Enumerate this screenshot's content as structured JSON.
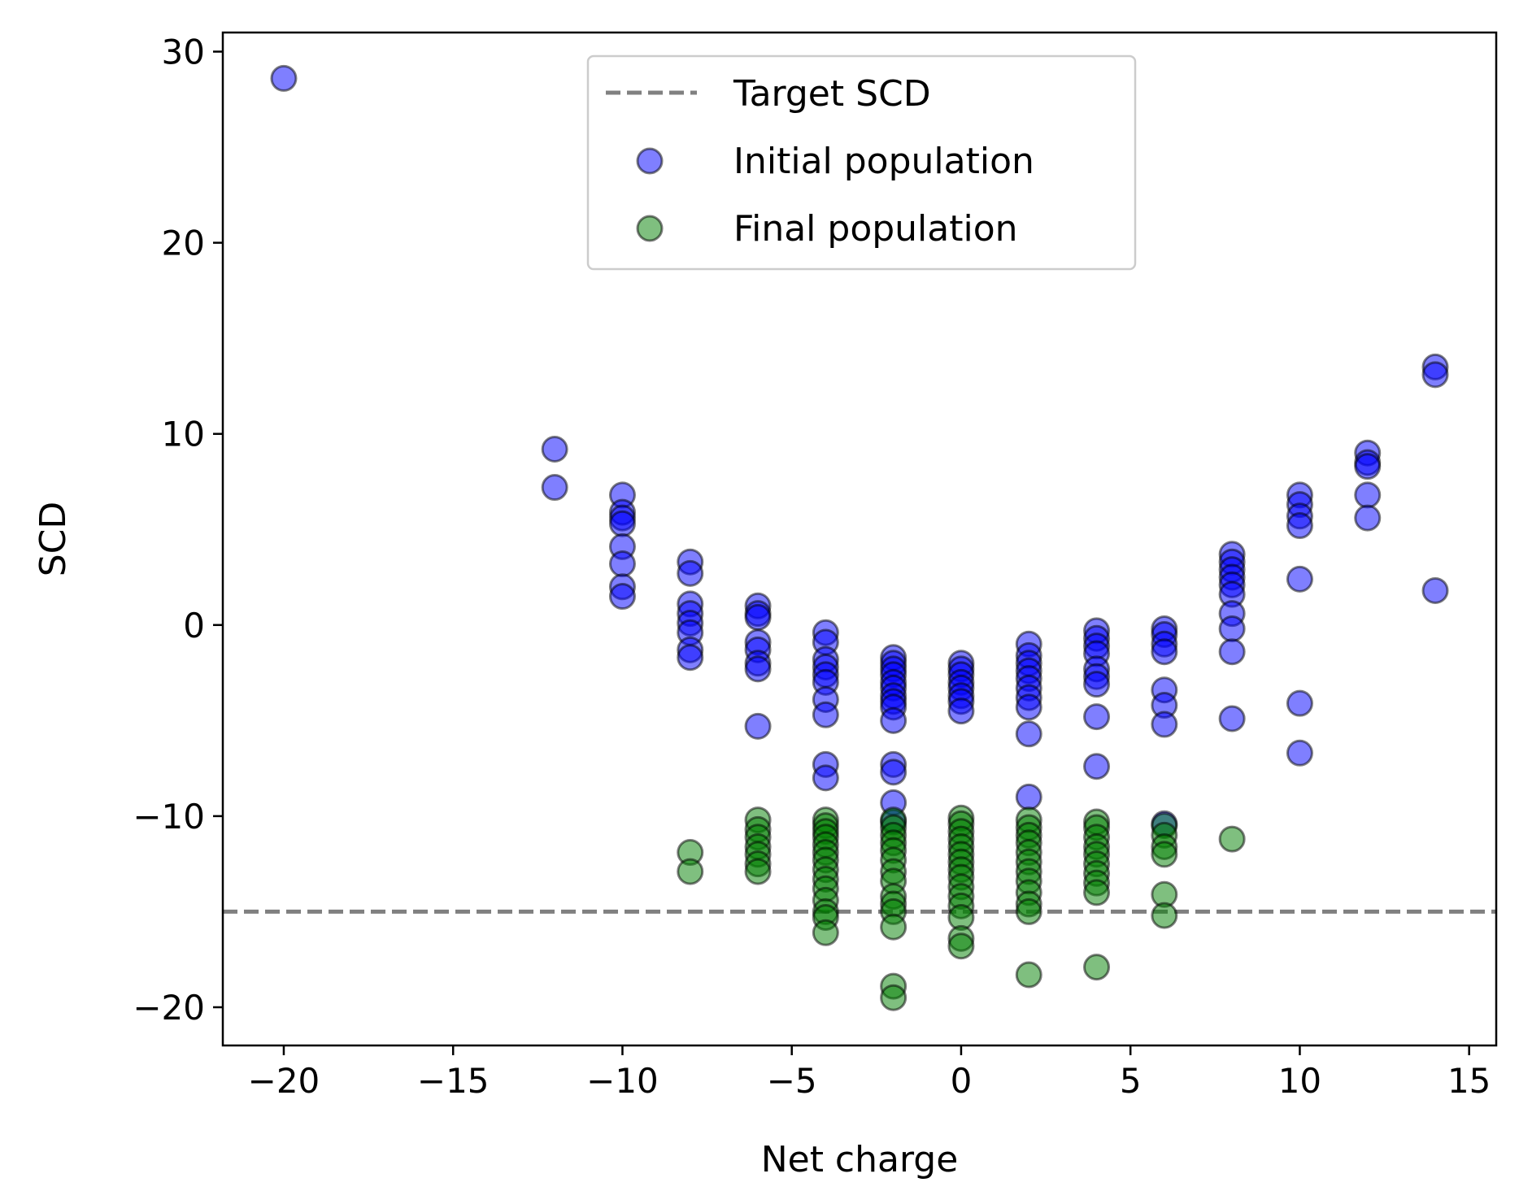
{
  "chart_data": {
    "type": "scatter",
    "title": "",
    "xlabel": "Net charge",
    "ylabel": "SCD",
    "xlim": [
      -21.8,
      15.8
    ],
    "ylim": [
      -22,
      31
    ],
    "xticks": [
      -20,
      -15,
      -10,
      -5,
      0,
      5,
      10,
      15
    ],
    "yticks": [
      -20,
      -10,
      0,
      10,
      20,
      30
    ],
    "xtick_labels": [
      "−20",
      "−15",
      "−10",
      "−5",
      "0",
      "5",
      "10",
      "15"
    ],
    "ytick_labels": [
      "−20",
      "−10",
      "0",
      "10",
      "20",
      "30"
    ],
    "grid": false,
    "legend_position": "top-center",
    "colors": {
      "initial": "#0000ff",
      "final": "#008000",
      "target": "#808080",
      "edge": "#000000"
    },
    "target_line": {
      "name": "Target SCD",
      "y": -15
    },
    "series": [
      {
        "name": "Initial population",
        "color": "#0000ff",
        "points": [
          [
            -20,
            28.6
          ],
          [
            -12,
            9.2
          ],
          [
            -12,
            7.2
          ],
          [
            -10,
            6.8
          ],
          [
            -10,
            5.9
          ],
          [
            -10,
            5.6
          ],
          [
            -10,
            5.3
          ],
          [
            -10,
            4.1
          ],
          [
            -10,
            3.2
          ],
          [
            -10,
            2.0
          ],
          [
            -10,
            1.5
          ],
          [
            -8,
            3.3
          ],
          [
            -8,
            2.7
          ],
          [
            -8,
            1.1
          ],
          [
            -8,
            0.6
          ],
          [
            -8,
            0.1
          ],
          [
            -8,
            -0.4
          ],
          [
            -8,
            -1.3
          ],
          [
            -8,
            -1.7
          ],
          [
            -6,
            1.0
          ],
          [
            -6,
            0.6
          ],
          [
            -6,
            0.4
          ],
          [
            -6,
            -0.9
          ],
          [
            -6,
            -1.3
          ],
          [
            -6,
            -2.0
          ],
          [
            -6,
            -2.3
          ],
          [
            -6,
            -5.3
          ],
          [
            -4,
            -0.4
          ],
          [
            -4,
            -0.9
          ],
          [
            -4,
            -1.8
          ],
          [
            -4,
            -2.2
          ],
          [
            -4,
            -2.6
          ],
          [
            -4,
            -3.0
          ],
          [
            -4,
            -3.9
          ],
          [
            -4,
            -4.7
          ],
          [
            -4,
            -7.3
          ],
          [
            -4,
            -8.0
          ],
          [
            -2,
            -1.7
          ],
          [
            -2,
            -2.0
          ],
          [
            -2,
            -2.3
          ],
          [
            -2,
            -2.6
          ],
          [
            -2,
            -3.0
          ],
          [
            -2,
            -3.3
          ],
          [
            -2,
            -3.7
          ],
          [
            -2,
            -4.0
          ],
          [
            -2,
            -4.3
          ],
          [
            -2,
            -5.0
          ],
          [
            -2,
            -7.3
          ],
          [
            -2,
            -7.7
          ],
          [
            -2,
            -9.3
          ],
          [
            -2,
            -10.3
          ],
          [
            0,
            -2.0
          ],
          [
            0,
            -2.3
          ],
          [
            0,
            -2.6
          ],
          [
            0,
            -3.0
          ],
          [
            0,
            -3.3
          ],
          [
            0,
            -3.7
          ],
          [
            0,
            -4.0
          ],
          [
            0,
            -4.5
          ],
          [
            2,
            -1.0
          ],
          [
            2,
            -1.6
          ],
          [
            2,
            -2.0
          ],
          [
            2,
            -2.4
          ],
          [
            2,
            -2.8
          ],
          [
            2,
            -3.3
          ],
          [
            2,
            -3.8
          ],
          [
            2,
            -4.3
          ],
          [
            2,
            -5.7
          ],
          [
            2,
            -9.0
          ],
          [
            4,
            -0.3
          ],
          [
            4,
            -0.7
          ],
          [
            4,
            -1.1
          ],
          [
            4,
            -1.5
          ],
          [
            4,
            -2.3
          ],
          [
            4,
            -2.7
          ],
          [
            4,
            -3.1
          ],
          [
            4,
            -4.8
          ],
          [
            4,
            -7.4
          ],
          [
            6,
            -0.2
          ],
          [
            6,
            -0.5
          ],
          [
            6,
            -1.0
          ],
          [
            6,
            -1.4
          ],
          [
            6,
            -3.4
          ],
          [
            6,
            -4.2
          ],
          [
            6,
            -5.2
          ],
          [
            6,
            -10.4
          ],
          [
            8,
            3.7
          ],
          [
            8,
            3.3
          ],
          [
            8,
            2.9
          ],
          [
            8,
            2.5
          ],
          [
            8,
            2.1
          ],
          [
            8,
            1.6
          ],
          [
            8,
            0.6
          ],
          [
            8,
            -0.2
          ],
          [
            8,
            -1.4
          ],
          [
            8,
            -4.9
          ],
          [
            10,
            6.8
          ],
          [
            10,
            6.3
          ],
          [
            10,
            5.7
          ],
          [
            10,
            5.2
          ],
          [
            10,
            2.4
          ],
          [
            10,
            -4.1
          ],
          [
            10,
            -6.7
          ],
          [
            12,
            9.0
          ],
          [
            12,
            8.5
          ],
          [
            12,
            8.3
          ],
          [
            12,
            6.8
          ],
          [
            12,
            5.6
          ],
          [
            14,
            13.5
          ],
          [
            14,
            13.1
          ],
          [
            14,
            1.8
          ]
        ]
      },
      {
        "name": "Final population",
        "color": "#008000",
        "points": [
          [
            -8,
            -11.9
          ],
          [
            -8,
            -12.9
          ],
          [
            -6,
            -10.2
          ],
          [
            -6,
            -10.7
          ],
          [
            -6,
            -11.1
          ],
          [
            -6,
            -11.6
          ],
          [
            -6,
            -12.0
          ],
          [
            -6,
            -12.5
          ],
          [
            -6,
            -12.9
          ],
          [
            -4,
            -10.2
          ],
          [
            -4,
            -10.5
          ],
          [
            -4,
            -10.8
          ],
          [
            -4,
            -11.1
          ],
          [
            -4,
            -11.5
          ],
          [
            -4,
            -11.9
          ],
          [
            -4,
            -12.3
          ],
          [
            -4,
            -12.8
          ],
          [
            -4,
            -13.3
          ],
          [
            -4,
            -13.8
          ],
          [
            -4,
            -14.4
          ],
          [
            -4,
            -15.0
          ],
          [
            -4,
            -15.3
          ],
          [
            -4,
            -16.1
          ],
          [
            -2,
            -10.2
          ],
          [
            -2,
            -10.6
          ],
          [
            -2,
            -11.0
          ],
          [
            -2,
            -11.4
          ],
          [
            -2,
            -11.8
          ],
          [
            -2,
            -12.3
          ],
          [
            -2,
            -12.9
          ],
          [
            -2,
            -13.4
          ],
          [
            -2,
            -14.2
          ],
          [
            -2,
            -14.6
          ],
          [
            -2,
            -15.0
          ],
          [
            -2,
            -15.8
          ],
          [
            -2,
            -18.9
          ],
          [
            -2,
            -19.5
          ],
          [
            0,
            -10.1
          ],
          [
            0,
            -10.4
          ],
          [
            0,
            -10.8
          ],
          [
            0,
            -11.2
          ],
          [
            0,
            -11.6
          ],
          [
            0,
            -12.0
          ],
          [
            0,
            -12.4
          ],
          [
            0,
            -12.8
          ],
          [
            0,
            -13.2
          ],
          [
            0,
            -13.7
          ],
          [
            0,
            -14.2
          ],
          [
            0,
            -14.7
          ],
          [
            0,
            -15.3
          ],
          [
            0,
            -16.4
          ],
          [
            0,
            -16.8
          ],
          [
            2,
            -10.2
          ],
          [
            2,
            -10.6
          ],
          [
            2,
            -11.0
          ],
          [
            2,
            -11.4
          ],
          [
            2,
            -11.9
          ],
          [
            2,
            -12.4
          ],
          [
            2,
            -12.9
          ],
          [
            2,
            -13.4
          ],
          [
            2,
            -14.0
          ],
          [
            2,
            -14.6
          ],
          [
            2,
            -15.0
          ],
          [
            2,
            -18.3
          ],
          [
            4,
            -10.3
          ],
          [
            4,
            -10.6
          ],
          [
            4,
            -11.1
          ],
          [
            4,
            -11.6
          ],
          [
            4,
            -12.0
          ],
          [
            4,
            -12.5
          ],
          [
            4,
            -13.0
          ],
          [
            4,
            -13.5
          ],
          [
            4,
            -14.0
          ],
          [
            4,
            -17.9
          ],
          [
            6,
            -10.5
          ],
          [
            6,
            -11.0
          ],
          [
            6,
            -11.6
          ],
          [
            6,
            -12.0
          ],
          [
            6,
            -14.1
          ],
          [
            6,
            -15.2
          ],
          [
            8,
            -11.2
          ]
        ]
      }
    ]
  }
}
